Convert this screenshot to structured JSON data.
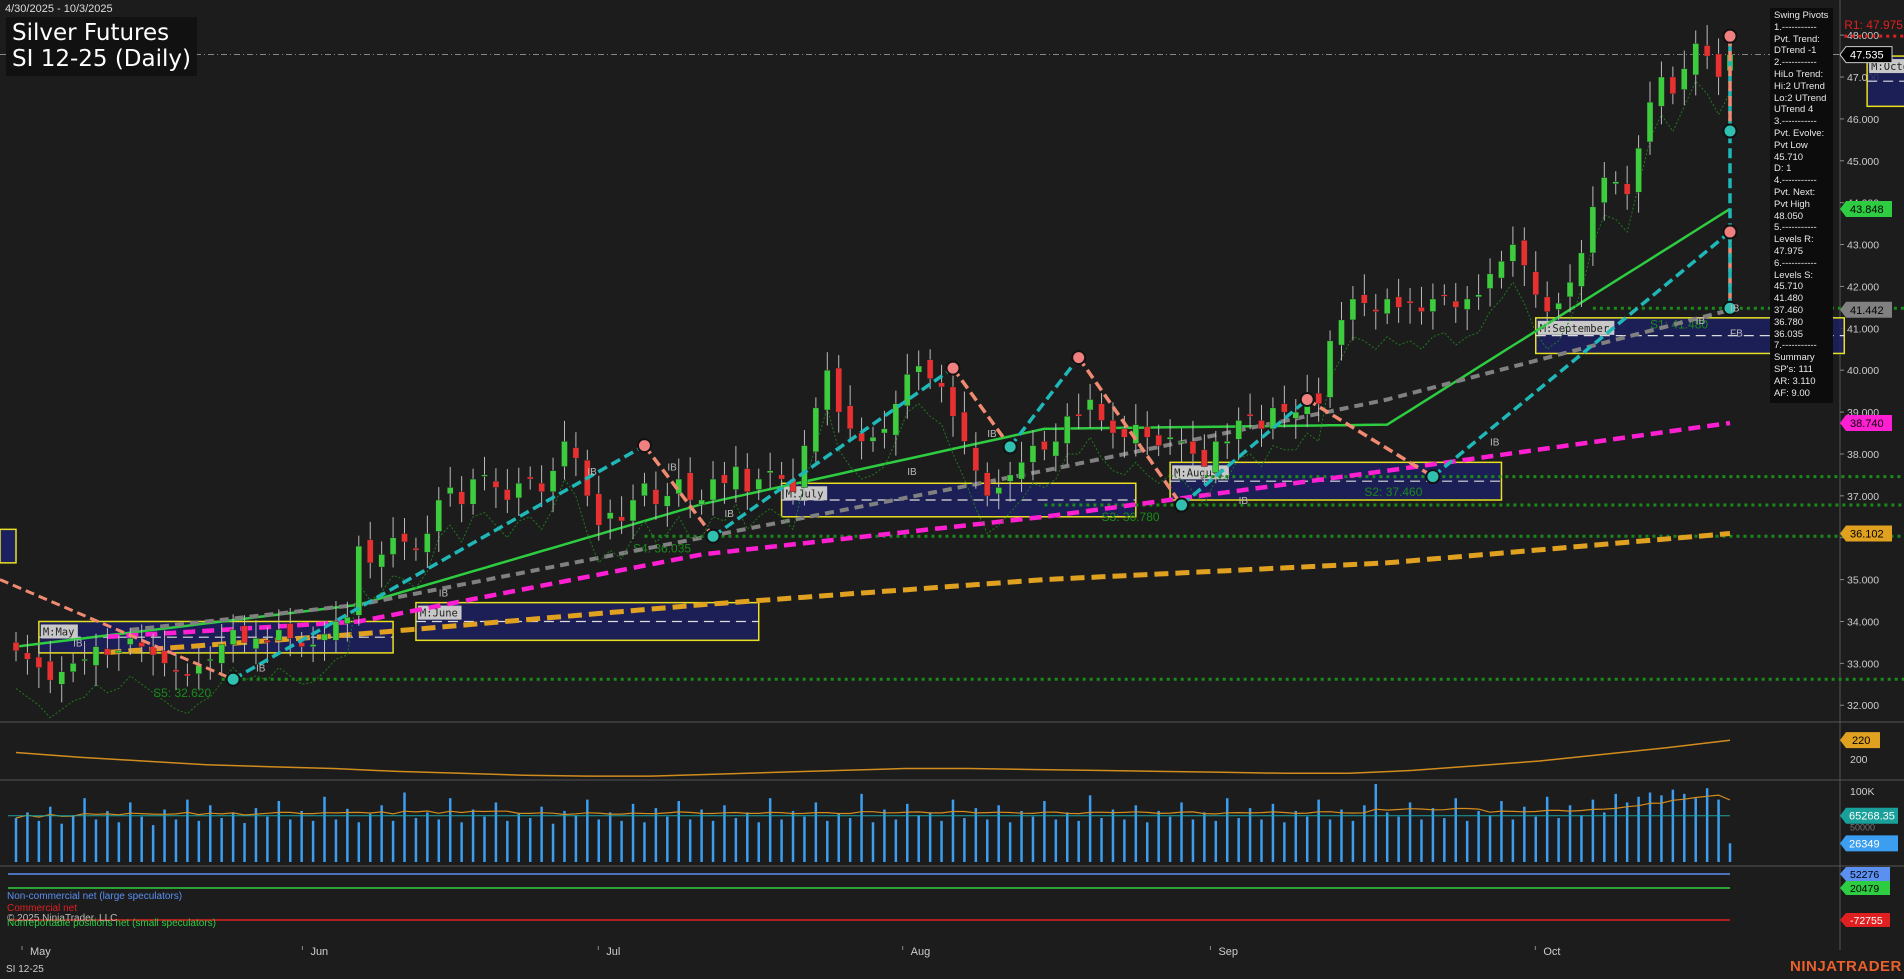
{
  "header": {
    "date_range": "4/30/2025 - 10/3/2025",
    "title_line1": "Silver Futures",
    "title_line2": "SI 12-25 (Daily)"
  },
  "info_panel": {
    "lines": [
      "Swing Pivots",
      "1.-----------",
      "Pvt. Trend:",
      "DTrend -1",
      "2.-----------",
      "HiLo Trend:",
      "Hi:2 UTrend",
      "Lo:2 UTrend",
      "UTrend 4",
      "3.-----------",
      "Pvt. Evolve:",
      "Pvt Low",
      "45.710",
      "D: 1",
      "4.-----------",
      "Pvt. Next:",
      "Pvt High",
      "48.050",
      "5.-----------",
      "Levels R:",
      "47.975",
      "6.-----------",
      "Levels S:",
      "45.710",
      "41.480",
      "37.460",
      "36.780",
      "36.035",
      "7.-----------",
      "Summary",
      "SP's: 111",
      "AR: 3.110",
      "AF: 9.00"
    ]
  },
  "colors": {
    "background": "#1c1c1c",
    "up_candle": "#3dcc3d",
    "down_candle": "#e83030",
    "ma_green": "#2ecc40",
    "ma_gray": "#808080",
    "ma_magenta": "#ff1fd2",
    "ma_orange": "#e0a020",
    "swing_cyan": "#1fb7b7",
    "swing_salmon": "#f08a70",
    "box_yellow": "#e8e020",
    "box_fill": "#1c1f60",
    "support_green": "#1a8a1a",
    "resistance_red": "#e02020"
  },
  "footer": {
    "symbol": "SI 12-25",
    "brand": "NINJATRADER"
  },
  "chart_data": [
    {
      "type": "candlestick",
      "pane": "price",
      "title": "Silver Futures SI 12-25 (Daily)",
      "x_labels": [
        "May",
        "Jun",
        "Jul",
        "Aug",
        "Sep",
        "Oct"
      ],
      "ylim": [
        31.6,
        48.6
      ],
      "y_ticks": [
        "32.000",
        "33.000",
        "34.000",
        "35.000",
        "36.000",
        "37.000",
        "38.000",
        "39.000",
        "40.000",
        "41.000",
        "42.000",
        "43.000",
        "44.000",
        "45.000",
        "46.000",
        "47.000",
        "48.000"
      ],
      "closes": [
        33.3,
        33.1,
        32.9,
        32.6,
        32.8,
        33.0,
        33.1,
        33.4,
        33.2,
        33.3,
        33.6,
        33.4,
        33.2,
        33.0,
        32.8,
        32.7,
        32.95,
        33.1,
        33.45,
        33.8,
        33.5,
        33.6,
        33.5,
        33.8,
        33.6,
        33.4,
        33.45,
        33.7,
        34.0,
        34.1,
        35.8,
        35.4,
        35.6,
        36.0,
        35.9,
        35.7,
        36.1,
        36.9,
        37.2,
        36.8,
        37.4,
        37.5,
        37.2,
        36.9,
        37.3,
        37.4,
        37.1,
        37.6,
        38.3,
        37.9,
        37.0,
        36.3,
        36.6,
        36.4,
        36.9,
        37.3,
        36.8,
        37.0,
        37.4,
        36.9,
        36.9,
        37.4,
        37.3,
        37.7,
        37.1,
        37.4,
        37.6,
        37.4,
        37.1,
        38.2,
        39.1,
        40.0,
        39.0,
        38.6,
        38.3,
        38.4,
        38.6,
        39.2,
        39.9,
        40.1,
        39.8,
        39.6,
        38.9,
        38.3,
        37.6,
        37.0,
        37.2,
        37.5,
        37.8,
        38.2,
        38.1,
        38.3,
        38.9,
        38.9,
        39.3,
        38.8,
        38.5,
        38.4,
        38.7,
        38.4,
        38.2,
        38.4,
        38.3,
        38.0,
        37.7,
        38.3,
        38.3,
        38.8,
        38.9,
        38.6,
        39.1,
        39.0,
        39.0,
        39.4,
        39.2,
        40.7,
        41.2,
        41.7,
        41.6,
        41.4,
        41.7,
        41.5,
        41.6,
        41.4,
        41.7,
        41.8,
        41.5,
        41.7,
        41.8,
        42.3,
        42.6,
        43.0,
        42.5,
        41.8,
        41.4,
        41.6,
        42.1,
        42.8,
        43.9,
        44.6,
        44.5,
        44.2,
        45.3,
        46.4,
        47.0,
        46.6,
        47.2,
        47.8,
        47.5,
        47.0,
        47.535
      ],
      "pivot_points": {
        "highs": [
          [
            "Jun 23",
            38.2
          ],
          [
            "Jul 14",
            40.05
          ],
          [
            "Jul 23",
            39.25
          ],
          [
            "Aug 8",
            39.3
          ],
          [
            "Sep 12",
            43.3
          ],
          [
            "Oct 1",
            47.975
          ]
        ],
        "lows": [
          [
            "May 15",
            32.62
          ],
          [
            "Jun 6",
            35.6
          ],
          [
            "Jun 24",
            36.035
          ],
          [
            "Jul 17",
            38.17
          ],
          [
            "Jul 30",
            36.78
          ],
          [
            "Aug 20",
            37.46
          ],
          [
            "Sep 16",
            41.48
          ],
          [
            "Oct 2",
            45.71
          ]
        ]
      },
      "levels": [
        {
          "label": "R1: 47.975",
          "value": 47.975
        },
        {
          "label": "S1: 41.480",
          "value": 41.48
        },
        {
          "label": "S2: 37.460",
          "value": 37.46
        },
        {
          "label": "S3: 36.780",
          "value": 36.78
        },
        {
          "label": "S4: 36.035",
          "value": 36.035
        },
        {
          "label": "S5: 32.620",
          "value": 32.62
        }
      ],
      "month_box_labels": [
        "M:May",
        "M:June",
        "M:July",
        "M:August",
        "M:September",
        "M:October"
      ],
      "bar_tags": [
        "IB",
        "IB",
        "IB",
        "IB",
        "IB",
        "IB",
        "IB",
        "IB",
        "IB",
        "IB",
        "IB",
        "IB",
        "FB"
      ],
      "series": [
        {
          "name": "MA (green)",
          "values": [
            33.4,
            34.4,
            36.8,
            38.6,
            38.7,
            43.85
          ]
        },
        {
          "name": "MA (gray)",
          "values": [
            33.5,
            34.4,
            36.0,
            37.6,
            39.3,
            41.44
          ]
        },
        {
          "name": "MA (magenta)",
          "values": [
            33.5,
            34.0,
            35.6,
            36.5,
            37.6,
            38.74
          ]
        },
        {
          "name": "MA (orange)",
          "values": [
            33.1,
            33.7,
            34.4,
            35.0,
            35.4,
            36.1
          ]
        }
      ],
      "y_markers": [
        "47.535",
        "43.848",
        "41.442",
        "38.740",
        "36.102"
      ]
    },
    {
      "type": "line",
      "pane": "oscillator",
      "ylim": [
        180,
        235
      ],
      "y_ticks": [
        "200"
      ],
      "y_marker": "220",
      "values": [
        207,
        202,
        198,
        194,
        192,
        190,
        187,
        185,
        183,
        182,
        182,
        184,
        186,
        188,
        190,
        190,
        189,
        188,
        187,
        186,
        185,
        185,
        188,
        193,
        198,
        205,
        212,
        220
      ]
    },
    {
      "type": "bar",
      "pane": "volume",
      "ylim": [
        0,
        110000
      ],
      "y_ticks": [
        "100K"
      ],
      "y_markers": [
        "65268.35",
        "26349",
        "50000"
      ],
      "series": [
        {
          "name": "Volume",
          "values": [
            62000,
            70000,
            58000,
            78000,
            54000,
            66000,
            90000,
            60000,
            72000,
            56000,
            84000,
            64000,
            52000,
            74000,
            60000,
            88000,
            58000,
            80000,
            62000,
            70000,
            55000,
            76000,
            64000,
            86000,
            60000,
            72000,
            58000,
            92000,
            60000,
            75000,
            56000,
            68000,
            80000,
            58000,
            98000,
            62000,
            70000,
            60000,
            90000,
            56000,
            74000,
            64000,
            84000,
            58000,
            68000,
            62000,
            78000,
            54000,
            72000,
            66000,
            88000,
            60000,
            70000,
            58000,
            82000,
            56000,
            76000,
            64000,
            86000,
            60000,
            74000,
            58000,
            80000,
            62000,
            70000,
            56000,
            90000,
            60000,
            72000,
            64000,
            84000,
            58000,
            68000,
            62000,
            96000,
            56000,
            74000,
            60000,
            82000,
            66000,
            70000,
            58000,
            88000,
            62000,
            76000,
            60000,
            80000,
            56000,
            72000,
            64000,
            86000,
            60000,
            70000,
            58000,
            94000,
            62000,
            74000,
            60000,
            80000,
            56000,
            72000,
            64000,
            84000,
            60000,
            70000,
            58000,
            90000,
            62000,
            76000,
            60000,
            82000,
            56000,
            72000,
            64000,
            88000,
            60000,
            74000,
            58000,
            80000,
            110000,
            70000,
            64000,
            84000,
            60000,
            76000,
            62000,
            90000,
            58000,
            72000,
            66000,
            86000,
            60000,
            78000,
            64000,
            92000,
            62000,
            80000,
            66000,
            88000,
            70000,
            96000,
            84000,
            92000,
            98000,
            94000,
            102000,
            96000,
            90000,
            104000,
            88000,
            26349
          ]
        }
      ]
    },
    {
      "type": "line",
      "pane": "cot",
      "legend": [
        "Non-commercial net (large speculators)",
        "Commercial net",
        "Nonreportable positions net (small speculators)"
      ],
      "y_markers": [
        "52276",
        "20479",
        "-72755"
      ],
      "series": [
        {
          "name": "Non-commercial net (large speculators)",
          "values": [
            52000,
            52100,
            52200,
            52276
          ]
        },
        {
          "name": "Commercial net",
          "values": [
            -72000,
            -72400,
            -72600,
            -72755
          ]
        },
        {
          "name": "Nonreportable positions net (small speculators)",
          "values": [
            20000,
            20200,
            20400,
            20479
          ]
        }
      ]
    }
  ],
  "copyright": "© 2025 NinjaTrader, LLC"
}
